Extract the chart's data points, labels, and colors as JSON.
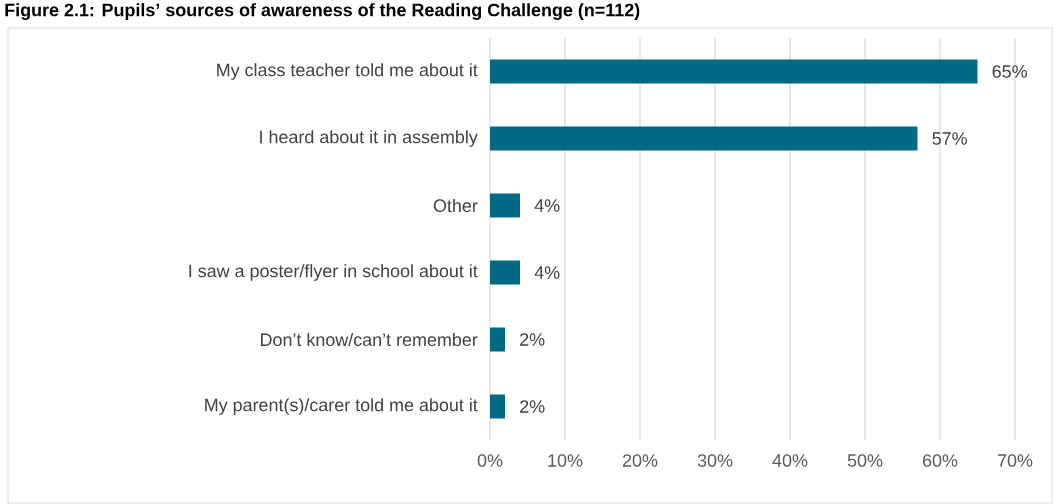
{
  "chart_data": {
    "type": "bar",
    "orientation": "horizontal",
    "title": "Figure 2.1: Pupils’ sources of awareness of the Reading Challenge (n=112)",
    "categories": [
      "My class teacher told me about it",
      "I heard about it in assembly",
      "Other",
      "I saw a poster/flyer in school about it",
      "Don’t know/can’t remember",
      "My parent(s)/carer told me about it"
    ],
    "values": [
      65,
      57,
      4,
      4,
      2,
      2
    ],
    "value_labels": [
      "65%",
      "57%",
      "4%",
      "4%",
      "2%",
      "2%"
    ],
    "color": "#006983",
    "xlim": [
      0,
      70
    ],
    "xticks": [
      {
        "value": 0,
        "label": "0%"
      },
      {
        "value": 10,
        "label": "10%"
      },
      {
        "value": 20,
        "label": "20%"
      },
      {
        "value": 30,
        "label": "30%"
      },
      {
        "value": 40,
        "label": "40%"
      },
      {
        "value": 50,
        "label": "50%"
      },
      {
        "value": 60,
        "label": "60%"
      },
      {
        "value": 70,
        "label": "70%"
      }
    ],
    "grid": "x"
  }
}
